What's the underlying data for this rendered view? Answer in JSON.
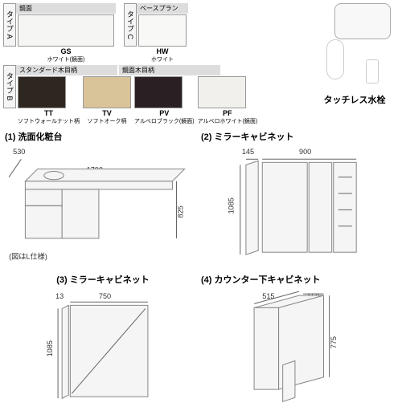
{
  "types": {
    "a": {
      "label": "タイプ\nA",
      "head": "鏡面",
      "swatches": [
        {
          "code": "GS",
          "name": "ホワイト(鏡面)",
          "color": "#f5f5f3"
        }
      ]
    },
    "c": {
      "label": "タイプ\nC",
      "head": "ベースプラン",
      "swatches": [
        {
          "code": "HW",
          "name": "ホワイト",
          "color": "#f8f8f6"
        }
      ]
    },
    "b": {
      "label": "タイプ\nB",
      "head1": "スタンダード木目柄",
      "head2": "鏡面木目柄",
      "swatches": [
        {
          "code": "TT",
          "name": "ソフトウォールナット柄",
          "color": "#2e2620"
        },
        {
          "code": "TV",
          "name": "ソフトオーク柄",
          "color": "#d9c49a"
        },
        {
          "code": "PV",
          "name": "アルベロブラック(鏡面)",
          "color": "#2a2024"
        },
        {
          "code": "PF",
          "name": "アルベロホワイト(鏡面)",
          "color": "#f2f0ed"
        }
      ]
    }
  },
  "faucet": {
    "label": "タッチレス水栓"
  },
  "products": [
    {
      "title": "(1) 洗面化粧台",
      "dims": {
        "w": "1700",
        "d": "530",
        "h": "825"
      },
      "note": "(図はL仕様)"
    },
    {
      "title": "(2) ミラーキャビネット",
      "dims": {
        "w": "900",
        "d": "145",
        "h": "1085"
      }
    },
    {
      "title": "(3) ミラーキャビネット",
      "dims": {
        "w": "750",
        "d": "13",
        "h": "1085"
      }
    },
    {
      "title": "(4) カウンター下キャビネット",
      "dims": {
        "w": "150",
        "d": "515",
        "h": "775"
      }
    }
  ],
  "colors": {
    "panel": "#f5f5f5",
    "line": "#666"
  }
}
